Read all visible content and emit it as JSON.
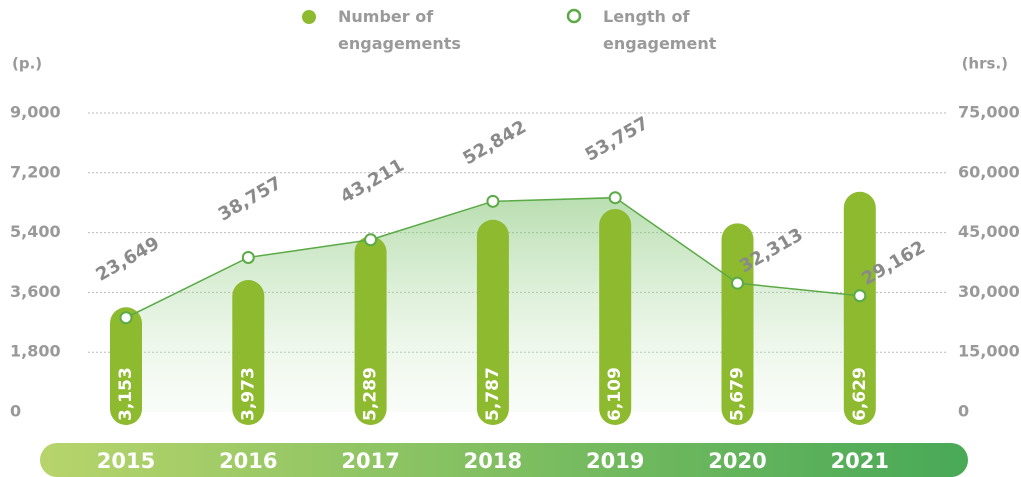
{
  "chart_data": {
    "type": "combo",
    "ylabel": "(p.)",
    "y2label": "(hrs.)",
    "categories": [
      "2015",
      "2016",
      "2017",
      "2018",
      "2019",
      "2020",
      "2021"
    ],
    "series": [
      {
        "name": "Number of engagements",
        "type": "bar",
        "color": "#8dba2f",
        "values": [
          3153,
          3973,
          5289,
          5787,
          6109,
          5679,
          6629
        ],
        "value_labels": [
          "3,153",
          "3,973",
          "5,289",
          "5,787",
          "6,109",
          "5,679",
          "6,629"
        ]
      },
      {
        "name": "Length of engagement",
        "type": "line",
        "axis": "y2",
        "color": "#5aaa46",
        "values": [
          23649,
          38757,
          43211,
          52842,
          53757,
          32313,
          29162
        ],
        "value_labels": [
          "23,649",
          "38,757",
          "43,211",
          "52,842",
          "53,757",
          "32,313",
          "29,162"
        ]
      }
    ],
    "ylim": [
      0,
      9000
    ],
    "yticks": [
      0,
      {
        "value": 1800,
        "label": "1,800"
      },
      {
        "value": 3600,
        "label": "3,600"
      },
      {
        "value": 5400,
        "label": "5,400"
      },
      {
        "value": 7200,
        "label": "7,200"
      },
      {
        "value": 9000,
        "label": "9,000"
      }
    ],
    "y2lim": [
      0,
      75000
    ],
    "y2ticks": [
      0,
      {
        "value": 15000,
        "label": "15,000"
      },
      {
        "value": 30000,
        "label": "30,000"
      },
      {
        "value": 45000,
        "label": "45,000"
      },
      {
        "value": 60000,
        "label": "60,000"
      },
      {
        "value": 75000,
        "label": "75,000"
      }
    ],
    "grid": true
  }
}
